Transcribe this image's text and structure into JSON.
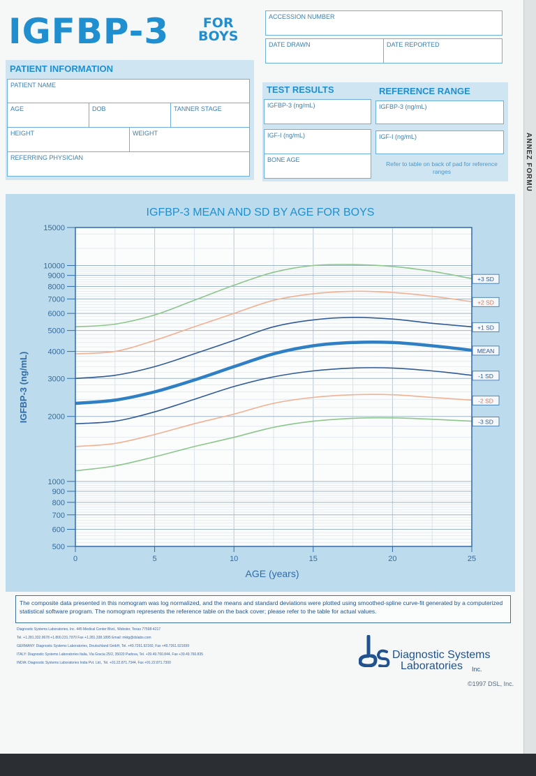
{
  "header": {
    "title": "IGFBP-3",
    "subtitle_line1": "FOR",
    "subtitle_line2": "BOYS"
  },
  "fields": {
    "accession_number": "ACCESSION NUMBER",
    "date_drawn": "DATE DRAWN",
    "date_reported": "DATE REPORTED"
  },
  "patient": {
    "title": "PATIENT INFORMATION",
    "patient_name": "PATIENT NAME",
    "age": "AGE",
    "dob": "DOB",
    "tanner_stage": "TANNER STAGE",
    "height": "HEIGHT",
    "weight": "WEIGHT",
    "referring_physician": "REFERRING PHYSICIAN"
  },
  "results": {
    "title": "TEST RESULTS",
    "igfbp3": "IGFBP-3 (ng/mL)",
    "igf1": "IGF-I (ng/mL)",
    "bone_age": "BONE AGE"
  },
  "reference": {
    "title": "REFERENCE RANGE",
    "igfbp3": "IGFBP-3 (ng/mL)",
    "igf1": "IGF-I (ng/mL)",
    "note": "Refer to table on back of pad for reference ranges"
  },
  "chart_data": {
    "type": "line",
    "title": "IGFBP-3 MEAN AND SD BY AGE FOR BOYS",
    "xlabel": "AGE (years)",
    "ylabel": "IGFBP-3 (ng/mL)",
    "xlim": [
      0,
      25
    ],
    "ylim": [
      500,
      15000
    ],
    "yscale": "log",
    "grid": true,
    "x_ticks": [
      "0",
      "5",
      "10",
      "15",
      "20",
      "25"
    ],
    "y_ticks": [
      "500",
      "600",
      "700",
      "800",
      "900",
      "1000",
      "2000",
      "3000",
      "4000",
      "5000",
      "6000",
      "7000",
      "8000",
      "9000",
      "10000",
      "15000"
    ],
    "x": [
      0,
      2.5,
      5,
      7.5,
      10,
      12.5,
      15,
      17.5,
      20,
      22.5,
      25
    ],
    "series": [
      {
        "name": "+3 SD",
        "color": "#8cc68a",
        "values": [
          5200,
          5350,
          5900,
          6900,
          8100,
          9300,
          10000,
          10100,
          9900,
          9400,
          8700
        ]
      },
      {
        "name": "+2 SD",
        "color": "#f2b092",
        "values": [
          3900,
          4000,
          4500,
          5200,
          6000,
          6900,
          7400,
          7600,
          7500,
          7200,
          6800
        ]
      },
      {
        "name": "+1 SD",
        "color": "#2f5a96",
        "values": [
          3000,
          3100,
          3400,
          3900,
          4500,
          5200,
          5600,
          5750,
          5650,
          5400,
          5200
        ]
      },
      {
        "name": "MEAN",
        "color": "#2f7fc4",
        "values": [
          2300,
          2380,
          2600,
          2950,
          3400,
          3900,
          4250,
          4400,
          4400,
          4250,
          4050
        ]
      },
      {
        "name": "-1 SD",
        "color": "#2f5a96",
        "values": [
          1850,
          1900,
          2100,
          2400,
          2750,
          3050,
          3250,
          3350,
          3350,
          3250,
          3100
        ]
      },
      {
        "name": "-2 SD",
        "color": "#f2b092",
        "values": [
          1450,
          1500,
          1650,
          1850,
          2050,
          2300,
          2450,
          2520,
          2520,
          2450,
          2380
        ]
      },
      {
        "name": "-3 SD",
        "color": "#8cc68a",
        "values": [
          1120,
          1180,
          1300,
          1450,
          1600,
          1780,
          1900,
          1960,
          1970,
          1940,
          1900
        ]
      }
    ]
  },
  "footer": {
    "note": "The composite data presented in this nomogram was log normalized, and the means and standard deviations were plotted using smoothed-spline curve-fit generated by a computerized statistical software program.  The nomogram represents the reference table on the back cover; please refer to the table for actual values.",
    "contact_lines": [
      "Diagnostic Systems Laboratories, Inc. 445 Medical Center Blvd., Webster, Texas 77598-4217",
      "Tel. +1.281.332.9678   +1.800.231.7970   Fax +1.281.338.1895   Email: mktg@dslabs.com",
      "GERMANY: Diagnostic Systems Laboratories, Deutschland GmbH, Tel. +49.7261.92160, Fax +49.7261.921699",
      "ITALY: Diagnostic Systems Laboratories Italia, Via Gracia 25/2, 35020 Padova, Tel. +39.49.760.844, Fax +39.49.760.835",
      "INDIA: Diagnostic Systems Laboratories India Pvt. Ltd., Tel. +91.22.871.7344, Fax +91.22.871.7300"
    ],
    "company_line1": "Diagnostic Systems",
    "company_line2": "Laboratories",
    "company_inc": "Inc.",
    "copyright": "©1997 DSL, Inc."
  },
  "spine": {
    "text": "ANNEZ FORMU"
  }
}
